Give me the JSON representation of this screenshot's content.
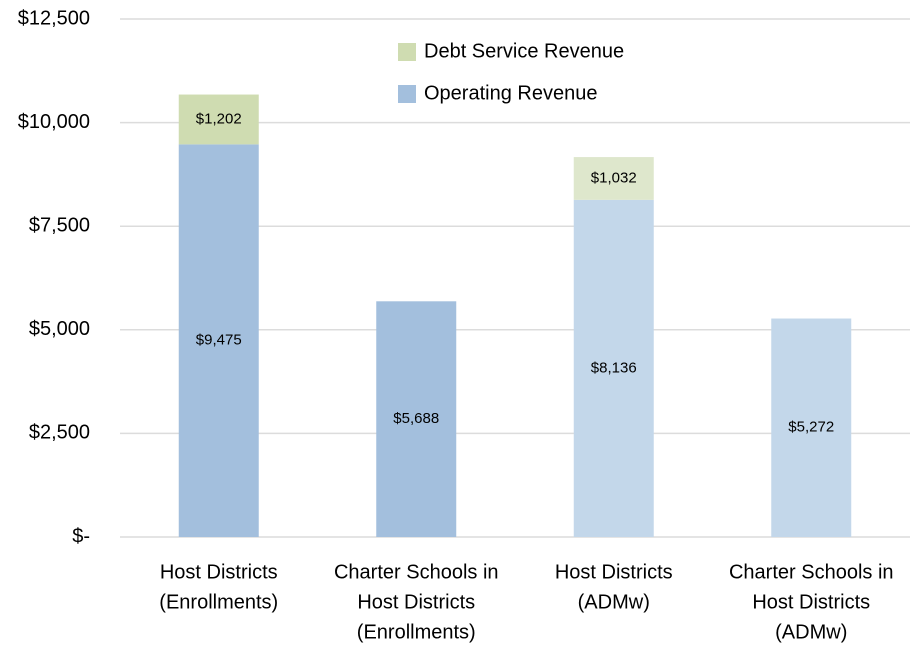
{
  "chart_data": {
    "type": "stacked_bar",
    "categories": [
      [
        "Host Districts",
        "(Enrollments)"
      ],
      [
        "Charter Schools in",
        "Host Districts",
        "(Enrollments)"
      ],
      [
        "Host Districts",
        "(ADMw)"
      ],
      [
        "Charter Schools in",
        "Host Districts",
        "(ADMw)"
      ]
    ],
    "series": [
      {
        "name": "Operating Revenue",
        "color": "#a3bfdd",
        "colors": [
          "#a3bfdd",
          "#a3bfdd",
          "#c3d7ea",
          "#c3d7ea"
        ],
        "values": [
          9475,
          5688,
          8136,
          5272
        ],
        "value_labels": [
          "$9,475",
          "$5,688",
          "$8,136",
          "$5,272"
        ]
      },
      {
        "name": "Debt Service Revenue",
        "color": "#cfdcb1",
        "colors": [
          "#cfdcb1",
          null,
          "#dee7cc",
          null
        ],
        "values": [
          1202,
          null,
          1032,
          null
        ],
        "value_labels": [
          "$1,202",
          null,
          "$1,032",
          null
        ]
      }
    ],
    "ylim": [
      0,
      12500
    ],
    "yticks": [
      {
        "value": 0,
        "label": "$-"
      },
      {
        "value": 2500,
        "label": "$2,500"
      },
      {
        "value": 5000,
        "label": "$5,000"
      },
      {
        "value": 7500,
        "label": "$7,500"
      },
      {
        "value": 10000,
        "label": "$10,000"
      },
      {
        "value": 12500,
        "label": "$12,500"
      }
    ],
    "grid": true,
    "legend": "top"
  }
}
